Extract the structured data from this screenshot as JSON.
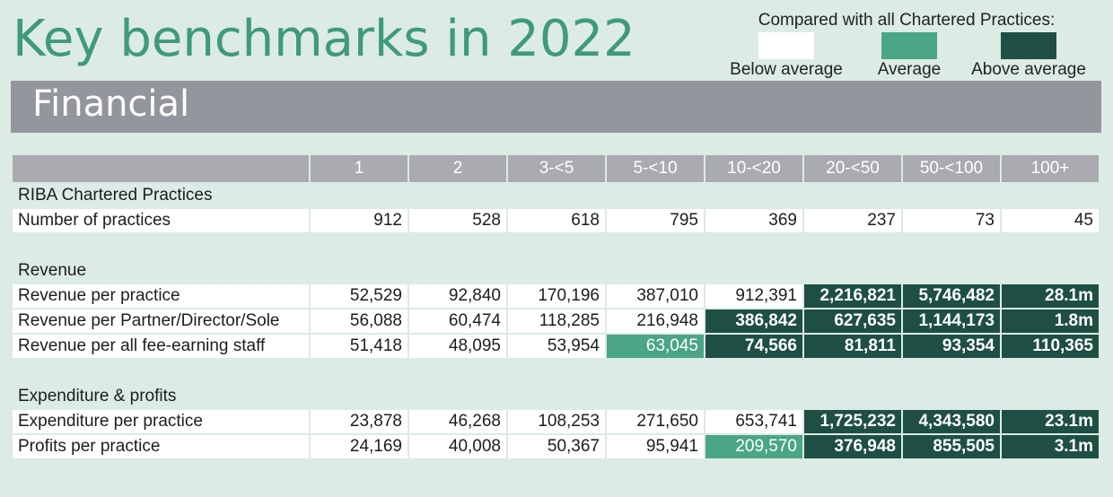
{
  "title": "Key benchmarks in 2022",
  "legend": {
    "title": "Compared with all Chartered Practices:",
    "items": [
      {
        "label": "Below average",
        "color": "#ffffff"
      },
      {
        "label": "Average",
        "color": "#4aa685"
      },
      {
        "label": "Above average",
        "color": "#1f4f44"
      }
    ]
  },
  "section": "Financial",
  "table": {
    "columns": [
      "1",
      "2",
      "3-<5",
      "5-<10",
      "10-<20",
      "20-<50",
      "50-<100",
      "100+"
    ],
    "group1_label": "RIBA Chartered Practices",
    "number_of_practices": {
      "label": "Number of practices",
      "values": [
        "912",
        "528",
        "618",
        "795",
        "369",
        "237",
        "73",
        "45"
      ]
    },
    "group2_label": "Revenue",
    "revenue_per_practice": {
      "label": "Revenue per practice",
      "values": [
        "52,529",
        "92,840",
        "170,196",
        "387,010",
        "912,391",
        "2,216,821",
        "5,746,482",
        "28.1m"
      ],
      "levels": [
        "w",
        "w",
        "w",
        "w",
        "w",
        "h",
        "h",
        "h"
      ]
    },
    "revenue_per_partner": {
      "label": "Revenue per Partner/Director/Sole",
      "values": [
        "56,088",
        "60,474",
        "118,285",
        "216,948",
        "386,842",
        "627,635",
        "1,144,173",
        "1.8m"
      ],
      "levels": [
        "w",
        "w",
        "w",
        "w",
        "h",
        "h",
        "h",
        "h"
      ]
    },
    "revenue_per_staff": {
      "label": "Revenue per all fee-earning staff",
      "values": [
        "51,418",
        "48,095",
        "53,954",
        "63,045",
        "74,566",
        "81,811",
        "93,354",
        "110,365"
      ],
      "levels": [
        "w",
        "w",
        "w",
        "a",
        "h",
        "h",
        "h",
        "h"
      ]
    },
    "group3_label": "Expenditure & profits",
    "expenditure_per_practice": {
      "label": "Expenditure per practice",
      "values": [
        "23,878",
        "46,268",
        "108,253",
        "271,650",
        "653,741",
        "1,725,232",
        "4,343,580",
        "23.1m"
      ],
      "levels": [
        "w",
        "w",
        "w",
        "w",
        "w",
        "h",
        "h",
        "h"
      ]
    },
    "profits_per_practice": {
      "label": "Profits per practice",
      "values": [
        "24,169",
        "40,008",
        "50,367",
        "95,941",
        "209,570",
        "376,948",
        "855,505",
        "3.1m"
      ],
      "levels": [
        "w",
        "w",
        "w",
        "w",
        "a",
        "h",
        "h",
        "h"
      ]
    }
  }
}
